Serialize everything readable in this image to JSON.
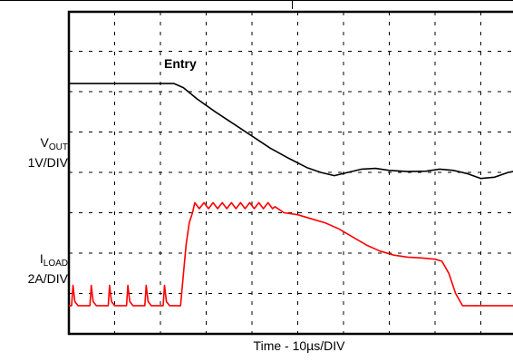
{
  "chart_data": {
    "type": "line",
    "title": "",
    "xlabel": "Time - 10µs/DIV",
    "annotation": "Entry",
    "grid": true,
    "divisions": {
      "x": 10,
      "y": 8
    },
    "series": [
      {
        "name": "VOUT",
        "label_main": "V",
        "label_sub": "OUT",
        "scale": "1V/DIV",
        "color": "#000000",
        "points": [
          [
            0,
            6.2
          ],
          [
            2.3,
            6.2
          ],
          [
            2.5,
            6.1
          ],
          [
            2.8,
            5.82
          ],
          [
            3.2,
            5.5
          ],
          [
            3.6,
            5.2
          ],
          [
            4.0,
            4.9
          ],
          [
            4.4,
            4.6
          ],
          [
            4.8,
            4.35
          ],
          [
            5.2,
            4.12
          ],
          [
            5.5,
            4.0
          ],
          [
            5.8,
            3.92
          ],
          [
            6.1,
            4.0
          ],
          [
            6.4,
            4.08
          ],
          [
            6.7,
            4.1
          ],
          [
            7.0,
            4.05
          ],
          [
            7.4,
            4.02
          ],
          [
            7.8,
            4.03
          ],
          [
            8.1,
            4.08
          ],
          [
            8.4,
            4.05
          ],
          [
            8.7,
            3.97
          ],
          [
            9.0,
            3.85
          ],
          [
            9.3,
            3.88
          ],
          [
            9.6,
            4.0
          ],
          [
            9.85,
            4.05
          ]
        ]
      },
      {
        "name": "ILOAD",
        "label_main": "I",
        "label_sub": "LOAD",
        "scale": "2A/DIV",
        "color": "#ff0000",
        "points": [
          [
            0,
            0.7
          ],
          [
            0.06,
            0.7
          ],
          [
            0.09,
            1.2
          ],
          [
            0.13,
            0.8
          ],
          [
            0.2,
            0.7
          ],
          [
            0.4,
            0.7
          ],
          [
            0.46,
            0.7
          ],
          [
            0.49,
            1.2
          ],
          [
            0.53,
            0.8
          ],
          [
            0.6,
            0.7
          ],
          [
            0.8,
            0.7
          ],
          [
            0.86,
            0.7
          ],
          [
            0.89,
            1.2
          ],
          [
            0.93,
            0.8
          ],
          [
            1.0,
            0.7
          ],
          [
            1.2,
            0.7
          ],
          [
            1.26,
            0.7
          ],
          [
            1.29,
            1.2
          ],
          [
            1.33,
            0.8
          ],
          [
            1.4,
            0.7
          ],
          [
            1.6,
            0.7
          ],
          [
            1.66,
            0.7
          ],
          [
            1.69,
            1.2
          ],
          [
            1.73,
            0.8
          ],
          [
            1.8,
            0.7
          ],
          [
            2.0,
            0.7
          ],
          [
            2.06,
            0.7
          ],
          [
            2.09,
            1.2
          ],
          [
            2.13,
            0.8
          ],
          [
            2.2,
            0.7
          ],
          [
            2.44,
            0.7
          ],
          [
            2.56,
            2.2
          ],
          [
            2.63,
            2.75
          ],
          [
            2.7,
            3.0
          ],
          [
            2.75,
            3.25
          ],
          [
            2.85,
            3.1
          ],
          [
            2.95,
            3.25
          ],
          [
            3.05,
            3.1
          ],
          [
            3.15,
            3.25
          ],
          [
            3.25,
            3.1
          ],
          [
            3.35,
            3.25
          ],
          [
            3.45,
            3.1
          ],
          [
            3.55,
            3.25
          ],
          [
            3.65,
            3.1
          ],
          [
            3.75,
            3.25
          ],
          [
            3.85,
            3.1
          ],
          [
            3.95,
            3.25
          ],
          [
            4.05,
            3.1
          ],
          [
            4.15,
            3.25
          ],
          [
            4.25,
            3.1
          ],
          [
            4.35,
            3.25
          ],
          [
            4.45,
            3.1
          ],
          [
            4.5,
            3.15
          ],
          [
            4.7,
            3.0
          ],
          [
            5.0,
            2.95
          ],
          [
            5.3,
            2.85
          ],
          [
            5.6,
            2.75
          ],
          [
            5.9,
            2.6
          ],
          [
            6.2,
            2.4
          ],
          [
            6.5,
            2.2
          ],
          [
            6.8,
            2.05
          ],
          [
            7.1,
            1.95
          ],
          [
            7.4,
            1.9
          ],
          [
            7.7,
            1.88
          ],
          [
            8.0,
            1.85
          ],
          [
            8.15,
            1.8
          ],
          [
            8.3,
            1.5
          ],
          [
            8.45,
            1.0
          ],
          [
            8.6,
            0.7
          ],
          [
            9.85,
            0.7
          ]
        ]
      }
    ]
  }
}
